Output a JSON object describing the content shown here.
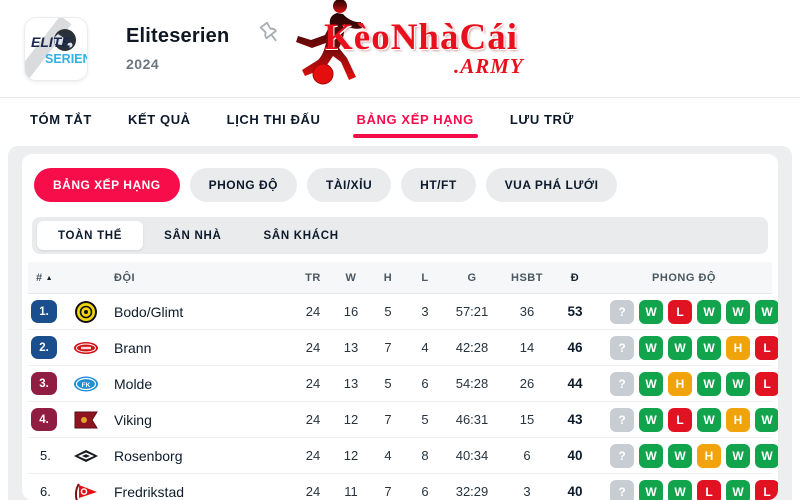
{
  "header": {
    "league_logo": {
      "line1": "ELITE",
      "line2": "SERIEN"
    },
    "title": "Eliteserien",
    "season": "2024",
    "brand": {
      "name": "KèoNhàCái",
      "suffix": ".ARMY"
    }
  },
  "nav": {
    "items": [
      {
        "label": "TÓM TẮT",
        "active": false
      },
      {
        "label": "KẾT QUẢ",
        "active": false
      },
      {
        "label": "LỊCH THI ĐẤU",
        "active": false
      },
      {
        "label": "BẢNG XẾP HẠNG",
        "active": true
      },
      {
        "label": "LƯU TRỮ",
        "active": false
      }
    ]
  },
  "subtabs": [
    {
      "label": "BẢNG XẾP HẠNG",
      "active": true
    },
    {
      "label": "PHONG ĐỘ",
      "active": false
    },
    {
      "label": "TÀI/XỈU",
      "active": false
    },
    {
      "label": "HT/FT",
      "active": false
    },
    {
      "label": "VUA PHÁ LƯỚI",
      "active": false
    }
  ],
  "scope_tabs": [
    {
      "label": "TOÀN THỂ",
      "active": true
    },
    {
      "label": "SÂN NHÀ",
      "active": false
    },
    {
      "label": "SÂN KHÁCH",
      "active": false
    }
  ],
  "table": {
    "columns": {
      "rank": "#",
      "sort_icon": "▲",
      "team": "ĐỘI",
      "tr": "TR",
      "w": "W",
      "h": "H",
      "l": "L",
      "g": "G",
      "hsbt": "HSBT",
      "d": "Đ",
      "form": "PHONG ĐỘ"
    },
    "rows": [
      {
        "rank": "1.",
        "rank_style": "blue",
        "team": "Bodo/Glimt",
        "logo": "bodo",
        "tr": "24",
        "w": "16",
        "h": "5",
        "l": "3",
        "g": "57:21",
        "hsbt": "36",
        "d": "53",
        "form": [
          "?",
          "W",
          "L",
          "W",
          "W",
          "W"
        ]
      },
      {
        "rank": "2.",
        "rank_style": "blue",
        "team": "Brann",
        "logo": "brann",
        "tr": "24",
        "w": "13",
        "h": "7",
        "l": "4",
        "g": "42:28",
        "hsbt": "14",
        "d": "46",
        "form": [
          "?",
          "W",
          "W",
          "W",
          "H",
          "L"
        ]
      },
      {
        "rank": "3.",
        "rank_style": "maroon",
        "team": "Molde",
        "logo": "molde",
        "tr": "24",
        "w": "13",
        "h": "5",
        "l": "6",
        "g": "54:28",
        "hsbt": "26",
        "d": "44",
        "form": [
          "?",
          "W",
          "H",
          "W",
          "W",
          "L"
        ]
      },
      {
        "rank": "4.",
        "rank_style": "maroon",
        "team": "Viking",
        "logo": "viking",
        "tr": "24",
        "w": "12",
        "h": "7",
        "l": "5",
        "g": "46:31",
        "hsbt": "15",
        "d": "43",
        "form": [
          "?",
          "W",
          "L",
          "W",
          "H",
          "W"
        ]
      },
      {
        "rank": "5.",
        "rank_style": "plain",
        "team": "Rosenborg",
        "logo": "rosenborg",
        "tr": "24",
        "w": "12",
        "h": "4",
        "l": "8",
        "g": "40:34",
        "hsbt": "6",
        "d": "40",
        "form": [
          "?",
          "W",
          "W",
          "H",
          "W",
          "W"
        ]
      },
      {
        "rank": "6.",
        "rank_style": "plain",
        "team": "Fredrikstad",
        "logo": "fredrikstad",
        "tr": "24",
        "w": "11",
        "h": "7",
        "l": "6",
        "g": "32:29",
        "hsbt": "3",
        "d": "40",
        "form": [
          "?",
          "W",
          "W",
          "L",
          "W",
          "L"
        ]
      }
    ]
  },
  "colors": {
    "accent": "#f70d4a",
    "form": {
      "W": "#12a44d",
      "L": "#e11222",
      "H": "#f1a30c",
      "?": "#c7cdd3"
    },
    "rank": {
      "blue": "#1a4e8c",
      "maroon": "#901d42"
    },
    "brand_red": "#e8101c"
  }
}
